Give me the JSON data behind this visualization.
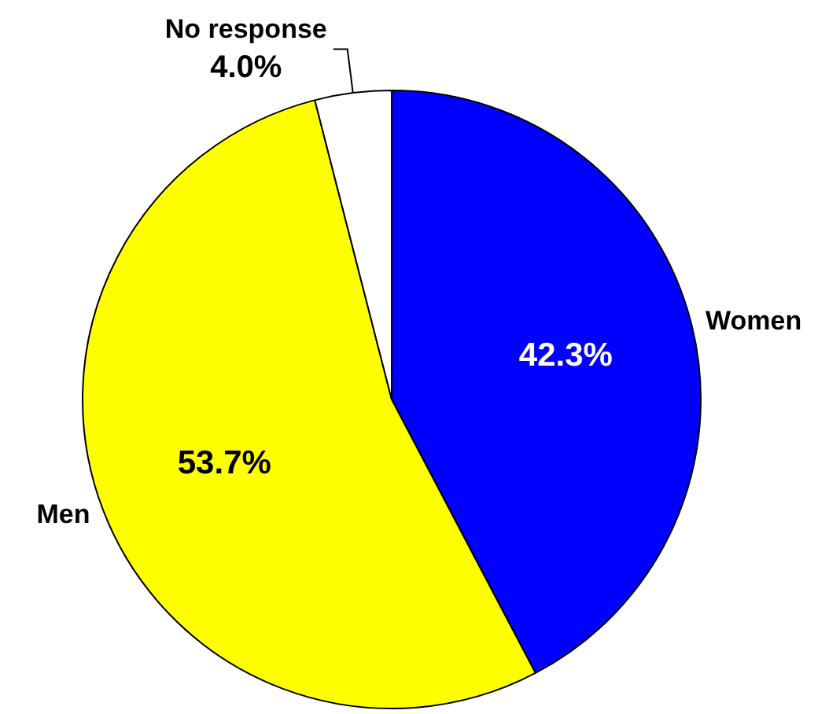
{
  "chart_data": {
    "type": "pie",
    "categories": [
      "Women",
      "Men",
      "No response"
    ],
    "values": [
      42.3,
      53.7,
      4.0
    ],
    "colors": [
      "#0000ff",
      "#ffff00",
      "#ffffff"
    ],
    "value_labels": [
      "42.3%",
      "53.7%",
      "4.0%"
    ]
  }
}
